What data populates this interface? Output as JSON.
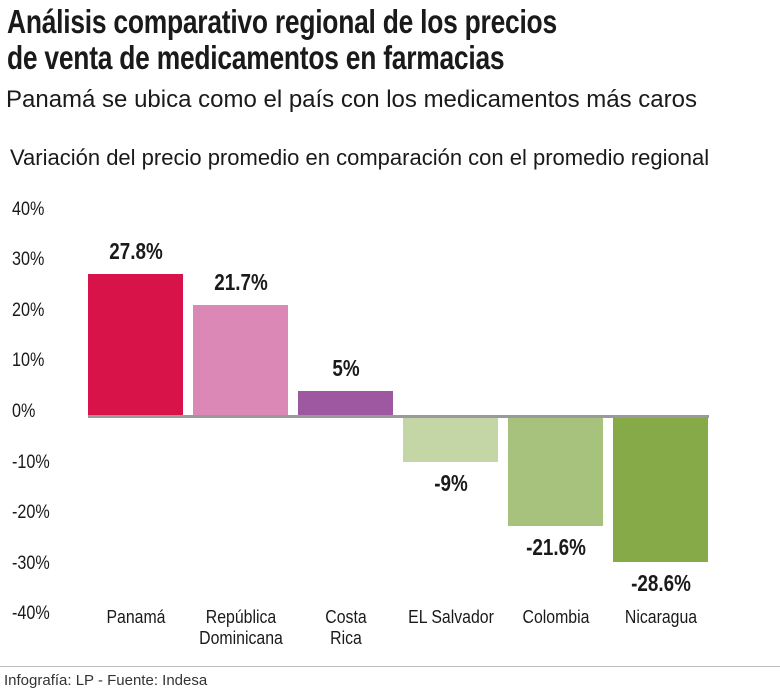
{
  "title_lines": [
    "Análisis comparativo regional de los precios",
    "de venta de medicamentos  en farmacias"
  ],
  "subtitle": "Panamá  se ubica como el país con los medicamentos más caros",
  "footer": "Infografía: LP - Fuente: Indesa",
  "chart_data": {
    "type": "bar",
    "title": "Variación del precio promedio en comparación con el promedio regional",
    "categories": [
      "Panamá",
      "República Dominicana",
      "Costa Rica",
      "EL Salvador",
      "Colombia",
      "Nicaragua"
    ],
    "category_lines": [
      [
        "Panamá"
      ],
      [
        "República",
        "Dominicana"
      ],
      [
        "Costa",
        "Rica"
      ],
      [
        "EL Salvador"
      ],
      [
        "Colombia"
      ],
      [
        "Nicaragua"
      ]
    ],
    "values": [
      27.8,
      21.7,
      5,
      -9,
      -21.6,
      -28.6
    ],
    "data_labels": [
      "27.8%",
      "21.7%",
      "5%",
      "-9%",
      "-21.6%",
      "-28.6%"
    ],
    "colors": [
      "#d7134a",
      "#dc88b6",
      "#9e58a2",
      "#c5d6a6",
      "#a7c27c",
      "#86aa47"
    ],
    "ylim": [
      -40,
      40
    ],
    "yticks": [
      40,
      30,
      20,
      10,
      0,
      -10,
      -20,
      -30,
      -40
    ],
    "ytick_labels": [
      "40%",
      "30%",
      "20%",
      "10%",
      "0%",
      "-10%",
      "-20%",
      "-30%",
      "-40%"
    ],
    "grid": false,
    "xlabel": "",
    "ylabel": ""
  }
}
